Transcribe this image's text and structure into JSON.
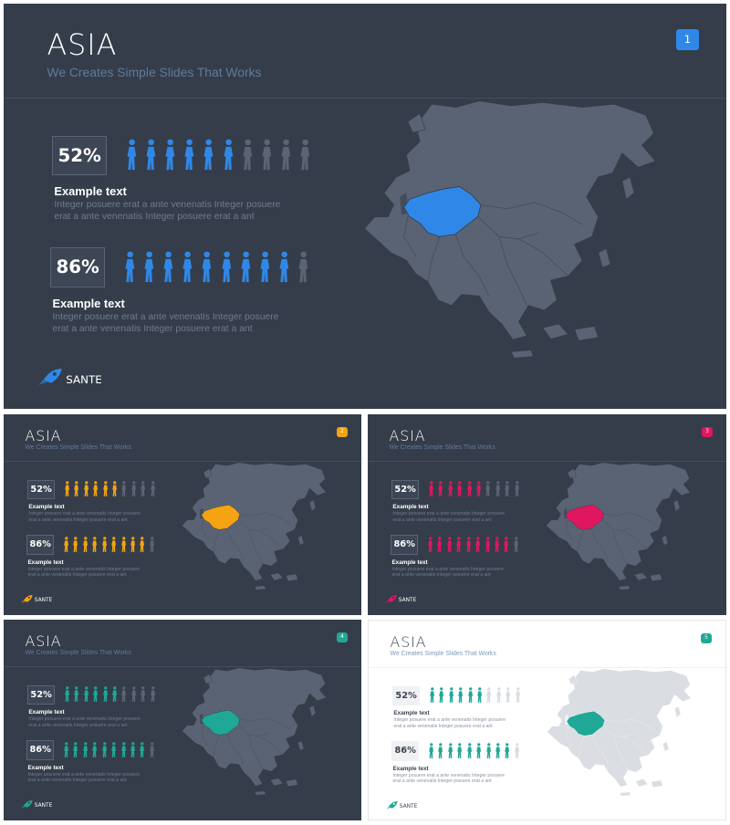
{
  "colors": {
    "blue": "#2f88e8",
    "orange": "#f5a310",
    "crimson": "#e0165f",
    "teal": "#1fa896",
    "map_dark": "#5a6373",
    "map_light": "#dadde2",
    "person_inactive_dark": "#5b6473",
    "person_inactive_light": "#d9dde2"
  },
  "slides": [
    {
      "id": 1,
      "theme": "dark",
      "accent": "#2f88e8",
      "title": "ASIA",
      "subtitle": "We Creates Simple Slides That Works",
      "badge": "1",
      "stats": [
        {
          "value": "52%",
          "active": 6,
          "total": 10,
          "label": "Example text",
          "desc": "Integer posuere erat a ante venenatis Integer posuere erat a ante venenatis Integer posuere erat a ant"
        },
        {
          "value": "86%",
          "active": 9,
          "total": 10,
          "label": "Example text",
          "desc": "Integer posuere erat a ante venenatis Integer posuere erat a ante venenatis Integer posuere erat a ant"
        }
      ],
      "logo_text": "SANTE"
    },
    {
      "id": 2,
      "theme": "dark",
      "accent": "#f5a310",
      "title": "ASIA",
      "subtitle": "We Creates Simple Slides That Works",
      "badge": "2",
      "stats": [
        {
          "value": "52%",
          "active": 6,
          "total": 10,
          "label": "Example text",
          "desc": "Integer posuere erat a ante venenatis Integer posuere erat a ante venenatis Integer posuere erat a ant"
        },
        {
          "value": "86%",
          "active": 9,
          "total": 10,
          "label": "Example text",
          "desc": "Integer posuere erat a ante venenatis Integer posuere erat a ante venenatis Integer posuere erat a ant"
        }
      ],
      "logo_text": "SANTE"
    },
    {
      "id": 3,
      "theme": "dark",
      "accent": "#e0165f",
      "title": "ASIA",
      "subtitle": "We Creates Simple Slides That Works",
      "badge": "3",
      "stats": [
        {
          "value": "52%",
          "active": 6,
          "total": 10,
          "label": "Example text",
          "desc": "Integer posuere erat a ante venenatis Integer posuere erat a ante venenatis Integer posuere erat a ant"
        },
        {
          "value": "86%",
          "active": 9,
          "total": 10,
          "label": "Example text",
          "desc": "Integer posuere erat a ante venenatis Integer posuere erat a ante venenatis Integer posuere erat a ant"
        }
      ],
      "logo_text": "SANTE"
    },
    {
      "id": 4,
      "theme": "dark",
      "accent": "#1fa896",
      "title": "ASIA",
      "subtitle": "We Creates Simple Slides That Works",
      "badge": "4",
      "stats": [
        {
          "value": "52%",
          "active": 6,
          "total": 10,
          "label": "Example text",
          "desc": "Integer posuere erat a ante venenatis Integer posuere erat a ante venenatis Integer posuere erat a ant"
        },
        {
          "value": "86%",
          "active": 9,
          "total": 10,
          "label": "Example text",
          "desc": "Integer posuere erat a ante venenatis Integer posuere erat a ante venenatis Integer posuere erat a ant"
        }
      ],
      "logo_text": "SANTE"
    },
    {
      "id": 5,
      "theme": "light",
      "accent": "#1fa896",
      "title": "ASIA",
      "subtitle": "We Creates Simple Slides That Works",
      "badge": "5",
      "stats": [
        {
          "value": "52%",
          "active": 6,
          "total": 10,
          "label": "Example text",
          "desc": "Integer posuere erat a ante venenatis Integer posuere erat a ante venenatis Integer posuere erat a ant"
        },
        {
          "value": "86%",
          "active": 9,
          "total": 10,
          "label": "Example text",
          "desc": "Integer posuere erat a ante venenatis Integer posuere erat a ante venenatis Integer posuere erat a ant"
        }
      ],
      "logo_text": "SANTE"
    }
  ]
}
